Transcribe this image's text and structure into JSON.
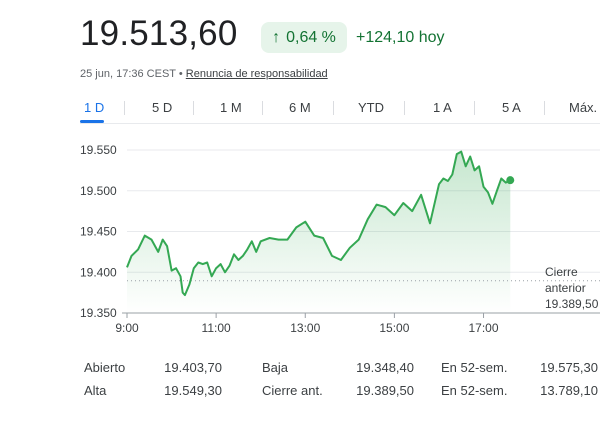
{
  "quote": {
    "price": "19.513,60",
    "change_pct": "0,64 %",
    "change_abs": "+124,10 hoy",
    "timestamp": "25 jun, 17:36 CEST",
    "separator": "•",
    "disclaimer": "Renuncia de responsabilidad",
    "up_color": "#137333",
    "chip_bg": "#e6f4ea",
    "arrow_icon": "arrow-up-icon"
  },
  "tabs": [
    "1 D",
    "5 D",
    "1 M",
    "6 M",
    "YTD",
    "1 A",
    "5 A",
    "Máx."
  ],
  "selected_tab": "1 D",
  "chart_data": {
    "type": "area",
    "y_ticks": [
      "19.550",
      "19.500",
      "19.450",
      "19.400",
      "19.350"
    ],
    "x_ticks": [
      "9:00",
      "11:00",
      "13:00",
      "15:00",
      "17:00"
    ],
    "ylim": [
      19350,
      19550
    ],
    "xlim": [
      9.0,
      18.2
    ],
    "line_color": "#34a853",
    "previous_close": {
      "label_line1": "Cierre",
      "label_line2": "anterior",
      "value_label": "19.389,50",
      "value": 19389.5
    },
    "x": [
      9.0,
      9.1,
      9.25,
      9.4,
      9.55,
      9.7,
      9.8,
      9.9,
      10.0,
      10.1,
      10.2,
      10.25,
      10.3,
      10.4,
      10.5,
      10.6,
      10.7,
      10.8,
      10.9,
      11.0,
      11.1,
      11.2,
      11.3,
      11.4,
      11.5,
      11.6,
      11.7,
      11.8,
      11.9,
      12.0,
      12.2,
      12.4,
      12.6,
      12.8,
      13.0,
      13.2,
      13.4,
      13.6,
      13.8,
      14.0,
      14.2,
      14.4,
      14.6,
      14.8,
      15.0,
      15.2,
      15.4,
      15.6,
      15.8,
      16.0,
      16.1,
      16.2,
      16.3,
      16.4,
      16.5,
      16.6,
      16.7,
      16.8,
      16.9,
      17.0,
      17.1,
      17.2,
      17.3,
      17.4,
      17.5,
      17.6
    ],
    "y": [
      19406,
      19420,
      19428,
      19445,
      19440,
      19425,
      19440,
      19432,
      19402,
      19405,
      19395,
      19375,
      19372,
      19385,
      19405,
      19412,
      19410,
      19412,
      19395,
      19405,
      19410,
      19400,
      19408,
      19422,
      19415,
      19420,
      19428,
      19438,
      19425,
      19438,
      19442,
      19440,
      19440,
      19455,
      19462,
      19445,
      19442,
      19420,
      19415,
      19430,
      19440,
      19465,
      19483,
      19480,
      19470,
      19485,
      19475,
      19495,
      19460,
      19508,
      19515,
      19512,
      19520,
      19545,
      19548,
      19530,
      19542,
      19525,
      19530,
      19505,
      19498,
      19484,
      19500,
      19515,
      19510,
      19513
    ]
  },
  "stats": {
    "rows": [
      {
        "l1": "Abierto",
        "v1": "19.403,70",
        "l2": "Baja",
        "v2": "19.348,40",
        "l3": "En 52-sem.",
        "v3": "19.575,30"
      },
      {
        "l1": "Alta",
        "v1": "19.549,30",
        "l2": "Cierre ant.",
        "v2": "19.389,50",
        "l3": "En 52-sem.",
        "v3": "13.789,10"
      }
    ]
  }
}
